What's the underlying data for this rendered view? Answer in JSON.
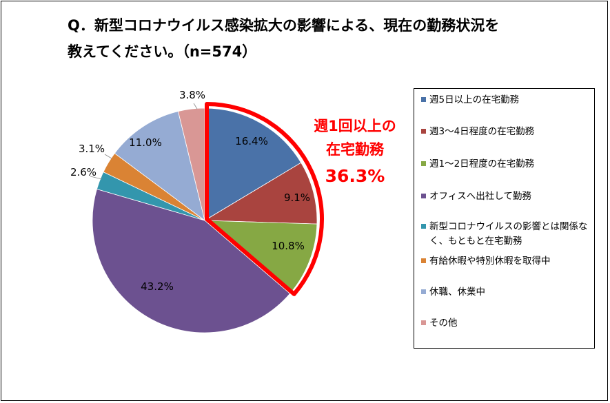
{
  "title": {
    "line1": "Q．新型コロナウイルス感染拡大の影響による、現在の勤務状況を",
    "line2": "教えてください。（n=574）"
  },
  "callout": {
    "line1": "週1回以上の",
    "line2": "在宅勤務",
    "value": "36.3%",
    "color": "#ff0000"
  },
  "chart_data": {
    "type": "pie",
    "unit": "%",
    "start_angle_deg": 0,
    "direction": "clockwise",
    "highlighted_slices": [
      0,
      1,
      2
    ],
    "slices": [
      {
        "label": "週5日以上の在宅勤務",
        "value": 16.4,
        "display": "16.4%",
        "color": "#4a72a8"
      },
      {
        "label": "週3～4日程度の在宅勤務",
        "value": 9.1,
        "display": "9.1%",
        "color": "#a9443f"
      },
      {
        "label": "週1～2日程度の在宅勤務",
        "value": 10.8,
        "display": "10.8%",
        "color": "#86a844"
      },
      {
        "label": "オフィスへ出社して勤務",
        "value": 43.2,
        "display": "43.2%",
        "color": "#6c5190"
      },
      {
        "label": "新型コロナウイルスの影響とは関係なく、もともと在宅勤務",
        "value": 2.6,
        "display": "2.6%",
        "color": "#3396ad"
      },
      {
        "label": "有給休暇や特別休暇を取得中",
        "value": 3.1,
        "display": "3.1%",
        "color": "#da8334"
      },
      {
        "label": "休職、休業中",
        "value": 11.0,
        "display": "11.0%",
        "color": "#95abd3"
      },
      {
        "label": "その他",
        "value": 3.8,
        "display": "3.8%",
        "color": "#d99795"
      }
    ]
  },
  "legend": {
    "items": [
      {
        "label": "週5日以上の在宅勤務"
      },
      {
        "label": "週3～4日程度の在宅勤務"
      },
      {
        "label": "週1～2日程度の在宅勤務"
      },
      {
        "label": "オフィスへ出社して勤務"
      },
      {
        "label": "新型コロナウイルスの影響とは関係なく、もともと在宅勤務"
      },
      {
        "label": "有給休暇や特別休暇を取得中"
      },
      {
        "label": "休職、休業中"
      },
      {
        "label": "その他"
      }
    ]
  }
}
